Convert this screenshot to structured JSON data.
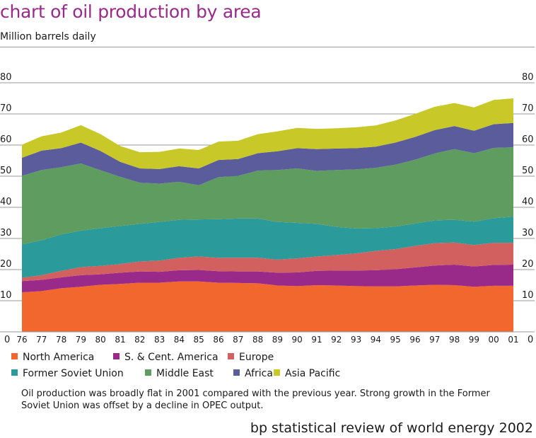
{
  "title": "chart of oil production by area",
  "subtitle": "Million barrels daily",
  "note": "Oil production was broadly flat in 2001 compared with the previous year. Strong growth in the Former Soviet Union was offset by a decline in OPEC output.",
  "footer": "bp statistical review of world energy 2002",
  "chart_data": {
    "type": "area",
    "stacked": true,
    "categories": [
      "76",
      "77",
      "78",
      "79",
      "80",
      "81",
      "82",
      "83",
      "84",
      "85",
      "86",
      "87",
      "88",
      "89",
      "90",
      "91",
      "92",
      "93",
      "94",
      "95",
      "96",
      "97",
      "98",
      "99",
      "00",
      "01"
    ],
    "ylim": [
      0,
      80
    ],
    "yticks": [
      0,
      10,
      20,
      30,
      40,
      50,
      60,
      70,
      80
    ],
    "grid": true,
    "legend_position": "bottom",
    "series": [
      {
        "name": "North America",
        "color": "#f2672e",
        "values": [
          12.7,
          13.1,
          14.0,
          14.5,
          15.1,
          15.4,
          15.8,
          15.8,
          16.2,
          16.2,
          15.8,
          15.7,
          15.6,
          14.9,
          14.7,
          15.0,
          14.9,
          14.7,
          14.6,
          14.6,
          14.9,
          15.1,
          15.0,
          14.5,
          14.8,
          14.8
        ]
      },
      {
        "name": "S. & Cent. America",
        "color": "#9a2a8a",
        "values": [
          3.6,
          3.6,
          3.5,
          3.7,
          3.4,
          3.6,
          3.6,
          3.5,
          3.6,
          3.7,
          3.7,
          3.7,
          3.8,
          4.1,
          4.4,
          4.6,
          4.8,
          5.0,
          5.2,
          5.5,
          5.8,
          6.2,
          6.6,
          6.5,
          6.7,
          6.8
        ]
      },
      {
        "name": "Europe",
        "color": "#d2605f",
        "values": [
          1.1,
          1.5,
          2.1,
          2.6,
          2.7,
          2.8,
          3.2,
          3.6,
          4.0,
          4.3,
          4.3,
          4.4,
          4.4,
          4.2,
          4.5,
          4.6,
          5.0,
          5.5,
          6.2,
          6.5,
          6.9,
          7.2,
          7.1,
          6.9,
          7.1,
          7.0
        ]
      },
      {
        "name": "Former Soviet Union",
        "color": "#2a9a9a",
        "values": [
          10.7,
          11.2,
          11.7,
          11.7,
          12.1,
          12.2,
          12.1,
          12.4,
          12.2,
          11.9,
          12.4,
          12.6,
          12.6,
          12.1,
          11.4,
          10.5,
          9.0,
          8.0,
          7.3,
          7.2,
          7.2,
          7.3,
          7.3,
          7.5,
          7.9,
          8.4
        ]
      },
      {
        "name": "Middle East",
        "color": "#5f9c60",
        "values": [
          22.0,
          22.6,
          21.6,
          21.6,
          18.6,
          15.8,
          13.2,
          12.3,
          12.2,
          11.0,
          13.5,
          13.7,
          15.4,
          16.7,
          17.5,
          17.0,
          18.3,
          19.0,
          19.4,
          19.9,
          20.5,
          21.5,
          22.7,
          22.0,
          22.6,
          22.3
        ]
      },
      {
        "name": "Africa",
        "color": "#5b5c9c",
        "values": [
          5.8,
          6.2,
          6.1,
          6.7,
          6.2,
          4.8,
          4.6,
          4.7,
          5.0,
          5.4,
          5.5,
          5.4,
          5.6,
          6.0,
          6.5,
          7.0,
          6.9,
          6.8,
          6.8,
          7.1,
          7.3,
          7.5,
          7.4,
          7.2,
          7.6,
          7.8
        ]
      },
      {
        "name": "Asia Pacific",
        "color": "#c8c828",
        "values": [
          4.2,
          4.6,
          5.0,
          5.6,
          5.4,
          5.1,
          5.2,
          5.5,
          5.7,
          5.9,
          5.9,
          5.9,
          6.1,
          6.4,
          6.5,
          6.5,
          6.5,
          6.7,
          6.8,
          7.1,
          7.4,
          7.5,
          7.4,
          7.5,
          7.8,
          7.9
        ]
      }
    ]
  }
}
